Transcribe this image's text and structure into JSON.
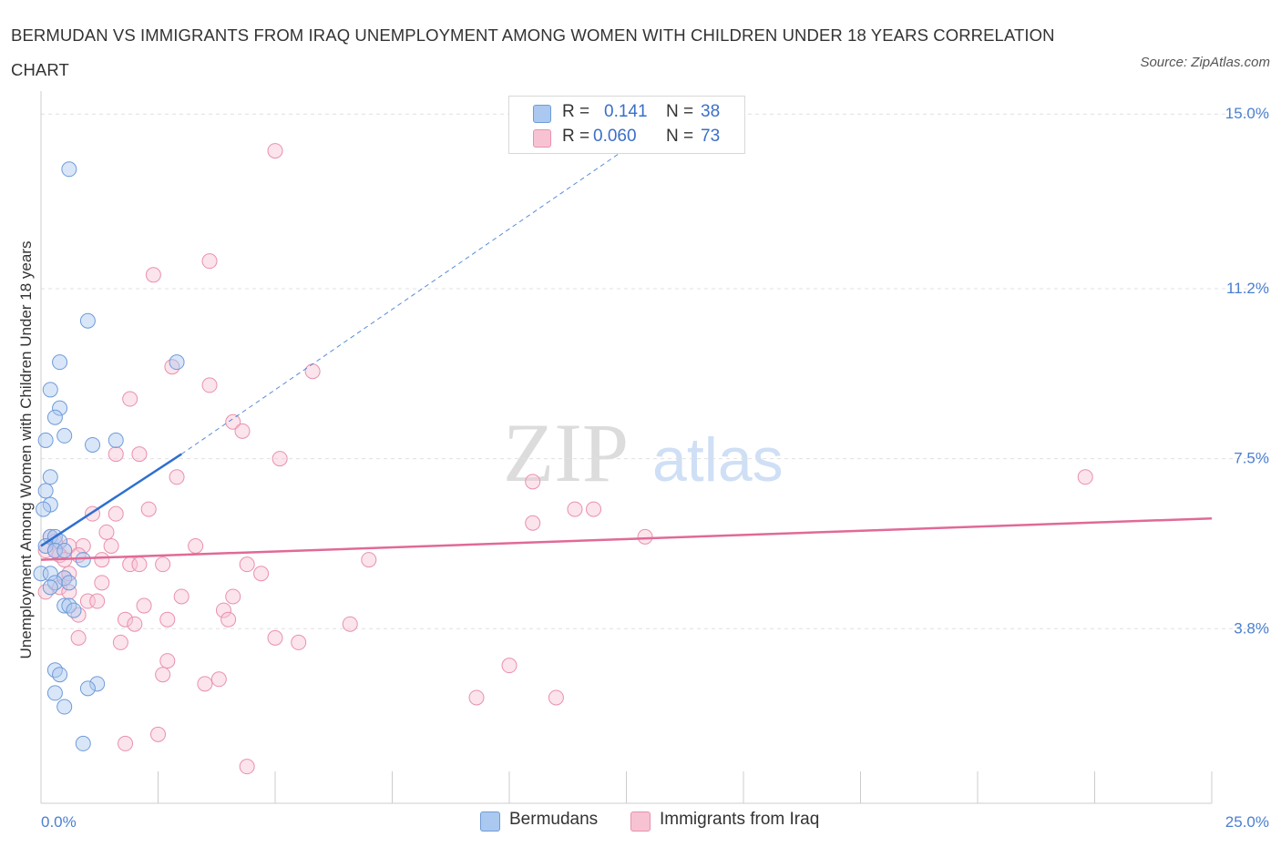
{
  "title": "BERMUDAN VS IMMIGRANTS FROM IRAQ UNEMPLOYMENT AMONG WOMEN WITH CHILDREN UNDER 18 YEARS CORRELATION CHART",
  "source": "Source: ZipAtlas.com",
  "watermark": {
    "zip": "ZIP",
    "atlas": "atlas"
  },
  "legend_top": {
    "series1": {
      "r_label": "R =",
      "r_value": "0.141",
      "n_label": "N =",
      "n_value": "38"
    },
    "series2": {
      "r_label": "R =",
      "r_value": "0.060",
      "n_label": "N =",
      "n_value": "73"
    }
  },
  "legend_bottom": {
    "series1": "Bermudans",
    "series2": "Immigrants from Iraq"
  },
  "chart_data": {
    "type": "scatter",
    "title": "BERMUDAN VS IMMIGRANTS FROM IRAQ UNEMPLOYMENT AMONG WOMEN WITH CHILDREN UNDER 18 YEARS CORRELATION CHART",
    "xlabel": "",
    "ylabel": "Unemployment Among Women with Children Under 18 years",
    "xlim": [
      0,
      25
    ],
    "ylim": [
      0,
      15.5
    ],
    "x_tick_labels": {
      "min": "0.0%",
      "max": "25.0%"
    },
    "y_ticks": [
      {
        "value": 3.8,
        "label": "3.8%"
      },
      {
        "value": 7.5,
        "label": "7.5%"
      },
      {
        "value": 11.2,
        "label": "11.2%"
      },
      {
        "value": 15.0,
        "label": "15.0%"
      }
    ],
    "colors": {
      "series1_fill": "#aac8f0",
      "series1_stroke": "#6f9bd8",
      "series1_line": "#2e6fd0",
      "series2_fill": "#f7c3d3",
      "series2_stroke": "#e991ad",
      "series2_line": "#e06a96",
      "tick_label": "#4a7fd0",
      "grid": "#e0e0e0"
    },
    "series": [
      {
        "name": "Bermudans",
        "r": 0.141,
        "n": 38,
        "trend": {
          "x": [
            0.0,
            3.0
          ],
          "y": [
            5.6,
            7.6
          ],
          "extend_to": [
            13.0,
            14.6
          ]
        },
        "points": [
          [
            0.6,
            13.8
          ],
          [
            1.0,
            10.5
          ],
          [
            0.4,
            9.6
          ],
          [
            2.9,
            9.6
          ],
          [
            0.2,
            9.0
          ],
          [
            0.4,
            8.6
          ],
          [
            0.3,
            8.4
          ],
          [
            0.5,
            8.0
          ],
          [
            0.1,
            7.9
          ],
          [
            1.1,
            7.8
          ],
          [
            1.6,
            7.9
          ],
          [
            0.2,
            7.1
          ],
          [
            0.1,
            6.8
          ],
          [
            0.2,
            6.5
          ],
          [
            0.05,
            6.4
          ],
          [
            0.2,
            5.8
          ],
          [
            0.3,
            5.8
          ],
          [
            0.4,
            5.7
          ],
          [
            0.1,
            5.6
          ],
          [
            0.3,
            5.5
          ],
          [
            0.5,
            5.5
          ],
          [
            0.9,
            5.3
          ],
          [
            0.0,
            5.0
          ],
          [
            0.2,
            5.0
          ],
          [
            0.5,
            4.9
          ],
          [
            0.3,
            4.8
          ],
          [
            0.6,
            4.8
          ],
          [
            0.2,
            4.7
          ],
          [
            0.5,
            4.3
          ],
          [
            0.6,
            4.3
          ],
          [
            0.7,
            4.2
          ],
          [
            0.3,
            2.9
          ],
          [
            0.4,
            2.8
          ],
          [
            1.2,
            2.6
          ],
          [
            1.0,
            2.5
          ],
          [
            0.3,
            2.4
          ],
          [
            0.5,
            2.1
          ],
          [
            0.9,
            1.3
          ]
        ]
      },
      {
        "name": "Immigrants from Iraq",
        "r": 0.06,
        "n": 73,
        "trend": {
          "x": [
            0.0,
            25.0
          ],
          "y": [
            5.3,
            6.2
          ]
        },
        "points": [
          [
            5.0,
            14.2
          ],
          [
            3.6,
            11.8
          ],
          [
            2.4,
            11.5
          ],
          [
            2.8,
            9.5
          ],
          [
            5.8,
            9.4
          ],
          [
            3.6,
            9.1
          ],
          [
            1.9,
            8.8
          ],
          [
            4.1,
            8.3
          ],
          [
            4.3,
            8.1
          ],
          [
            1.6,
            7.6
          ],
          [
            2.1,
            7.6
          ],
          [
            5.1,
            7.5
          ],
          [
            2.9,
            7.1
          ],
          [
            10.5,
            7.0
          ],
          [
            22.3,
            7.1
          ],
          [
            2.3,
            6.4
          ],
          [
            11.4,
            6.4
          ],
          [
            11.8,
            6.4
          ],
          [
            1.1,
            6.3
          ],
          [
            1.6,
            6.3
          ],
          [
            10.5,
            6.1
          ],
          [
            1.4,
            5.9
          ],
          [
            12.9,
            5.8
          ],
          [
            0.3,
            5.7
          ],
          [
            0.6,
            5.6
          ],
          [
            0.9,
            5.6
          ],
          [
            1.5,
            5.6
          ],
          [
            3.3,
            5.6
          ],
          [
            0.1,
            5.5
          ],
          [
            0.4,
            5.4
          ],
          [
            0.8,
            5.4
          ],
          [
            0.5,
            5.3
          ],
          [
            1.3,
            5.3
          ],
          [
            1.9,
            5.2
          ],
          [
            2.1,
            5.2
          ],
          [
            2.6,
            5.2
          ],
          [
            4.4,
            5.2
          ],
          [
            7.0,
            5.3
          ],
          [
            4.7,
            5.0
          ],
          [
            0.5,
            4.9
          ],
          [
            1.3,
            4.8
          ],
          [
            0.4,
            4.7
          ],
          [
            0.6,
            4.6
          ],
          [
            3.0,
            4.5
          ],
          [
            4.1,
            4.5
          ],
          [
            1.0,
            4.4
          ],
          [
            1.2,
            4.4
          ],
          [
            2.2,
            4.3
          ],
          [
            3.9,
            4.2
          ],
          [
            0.8,
            4.1
          ],
          [
            4.0,
            4.0
          ],
          [
            1.8,
            4.0
          ],
          [
            2.0,
            3.9
          ],
          [
            2.7,
            4.0
          ],
          [
            6.6,
            3.9
          ],
          [
            0.8,
            3.6
          ],
          [
            5.0,
            3.6
          ],
          [
            1.7,
            3.5
          ],
          [
            5.5,
            3.5
          ],
          [
            2.7,
            3.1
          ],
          [
            10.0,
            3.0
          ],
          [
            2.6,
            2.8
          ],
          [
            3.8,
            2.7
          ],
          [
            3.5,
            2.6
          ],
          [
            9.3,
            2.3
          ],
          [
            11.0,
            2.3
          ],
          [
            2.5,
            1.5
          ],
          [
            1.8,
            1.3
          ],
          [
            4.4,
            0.8
          ],
          [
            0.2,
            5.8
          ],
          [
            0.3,
            5.5
          ],
          [
            0.6,
            5.0
          ],
          [
            0.1,
            4.6
          ]
        ]
      }
    ]
  }
}
